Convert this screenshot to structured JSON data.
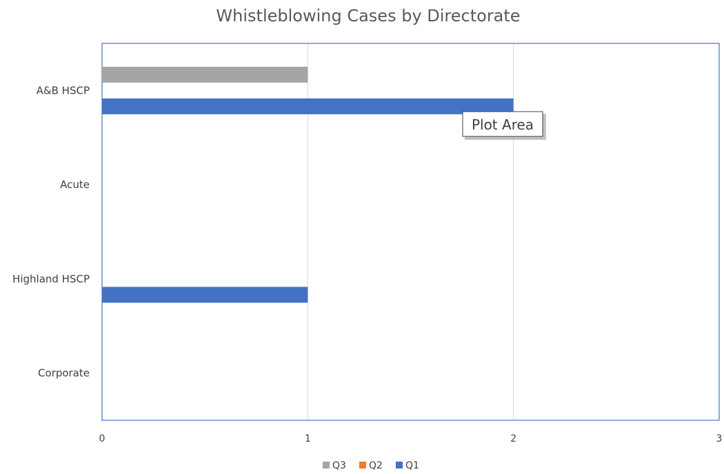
{
  "chart_data": {
    "type": "bar",
    "orientation": "horizontal",
    "title": "Whistleblowing Cases by Directorate",
    "categories": [
      "A&B HSCP",
      "Acute",
      "Highland HSCP",
      "Corporate"
    ],
    "series": [
      {
        "name": "Q3",
        "color": "#a5a5a5",
        "values": [
          1,
          0,
          0,
          0
        ]
      },
      {
        "name": "Q2",
        "color": "#ed7d31",
        "values": [
          0,
          0,
          0,
          0
        ]
      },
      {
        "name": "Q1",
        "color": "#4472c4",
        "values": [
          2,
          0,
          1,
          0
        ]
      }
    ],
    "xlim": [
      0,
      3
    ],
    "x_ticks": [
      0,
      1,
      2,
      3
    ],
    "x_tick_labels": [
      "0",
      "1",
      "2",
      "3"
    ],
    "grid": true,
    "legend": "bottom",
    "legend_order": [
      "Q3",
      "Q2",
      "Q1"
    ],
    "plot_border_color": "#4472c4"
  },
  "tooltip": {
    "text": "Plot Area"
  }
}
